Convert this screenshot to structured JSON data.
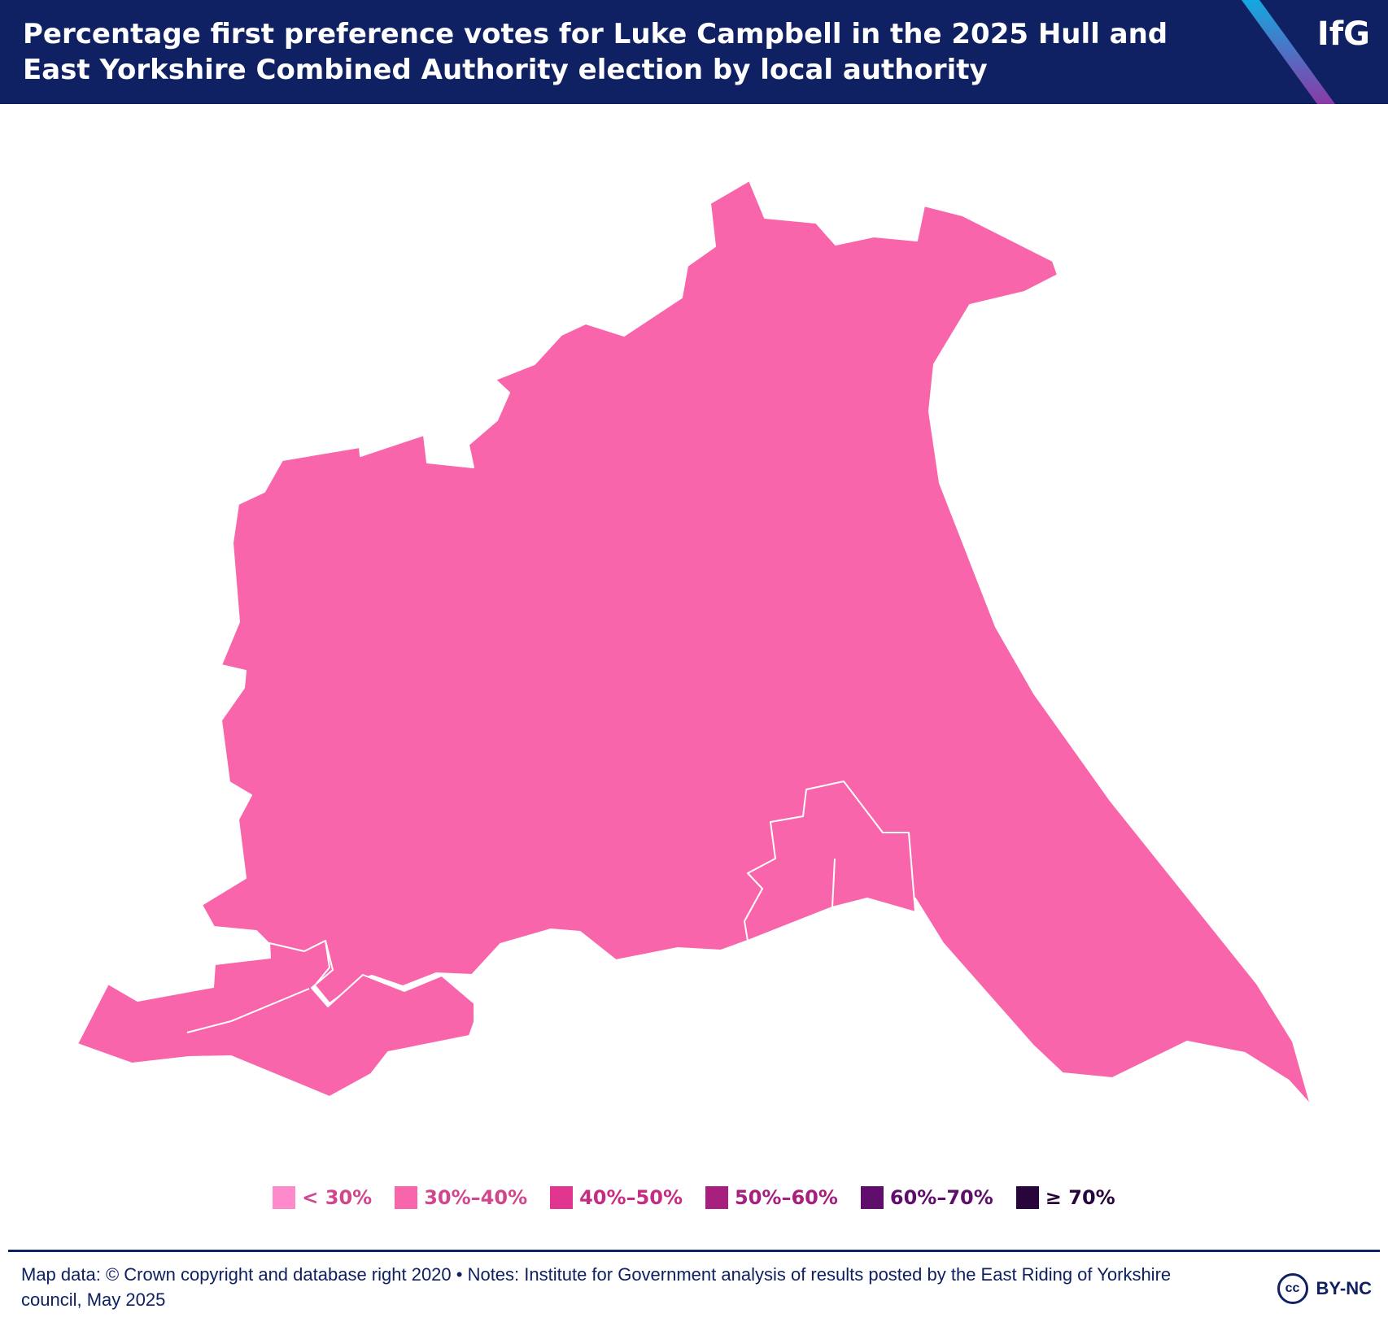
{
  "header": {
    "title": "Percentage first preference votes for Luke Campbell in the 2025 Hull and East Yorkshire Combined Authority election by local authority",
    "logo": "IfG",
    "background_color": "#0f2063"
  },
  "map": {
    "candidate": "Luke Campbell",
    "regions": [
      {
        "name": "East Riding of Yorkshire",
        "band": "30%–40%",
        "color": "#f965aa"
      },
      {
        "name": "Kingston upon Hull",
        "band": "30%–40%",
        "color": "#f965aa"
      }
    ]
  },
  "legend": {
    "items": [
      {
        "label": "< 30%",
        "color": "#ff8acb",
        "text_color": "#d1478e"
      },
      {
        "label": "30%–40%",
        "color": "#f965aa",
        "text_color": "#d1478e"
      },
      {
        "label": "40%–50%",
        "color": "#e2358f",
        "text_color": "#c72c83"
      },
      {
        "label": "50%–60%",
        "color": "#a8207e",
        "text_color": "#a8207e"
      },
      {
        "label": "60%–70%",
        "color": "#5f0e6b",
        "text_color": "#5f0e6b"
      },
      {
        "label": "≥ 70%",
        "color": "#28063b",
        "text_color": "#28063b"
      }
    ]
  },
  "footer": {
    "note": "Map data: © Crown copyright and database right 2020  • Notes: Institute for Government analysis of results posted by the East Riding of Yorkshire council, May 2025",
    "license_icon": "cc",
    "license_label": "BY-NC"
  }
}
